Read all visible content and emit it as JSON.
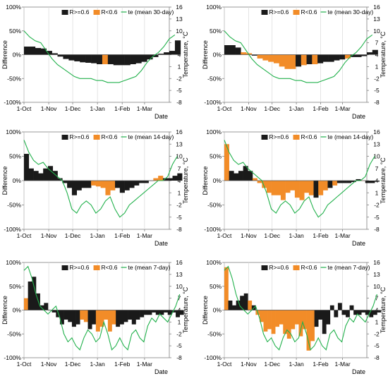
{
  "figure": {
    "legend": {
      "high": "R>=0.6",
      "low": "R<0.6"
    },
    "xlabel": "Date",
    "ylabel_left": "Difference",
    "ylabel_right": "Temperature, °C",
    "colors": {
      "high": "#1a1a1a",
      "low": "#f28c28",
      "temp": "#22b14c",
      "grid": "#d9d9d9",
      "axis": "#7f7f7f"
    }
  },
  "chart_data": [
    {
      "type": "bar",
      "panel": "top-left",
      "legend_temp": "te (mean 30-day)",
      "ylim": [
        -1.0,
        1.0
      ],
      "y_ticks": [
        "100%",
        "50%",
        "0%",
        "-50%",
        "-100%"
      ],
      "y2lim": [
        -8,
        16
      ],
      "y2_ticks": [
        "16",
        "13",
        "10",
        "7",
        "4",
        "1",
        "-2",
        "-5",
        "-8"
      ],
      "x_ticks": [
        "1-Oct",
        "1-Nov",
        "1-Dec",
        "1-Jan",
        "1-Feb",
        "1-Mar"
      ],
      "x_tick_days": [
        0,
        31,
        61,
        92,
        123,
        151
      ],
      "bars": {
        "day_start": 0,
        "day_step": 7,
        "values": [
          0.17,
          0.17,
          0.14,
          0.13,
          0.08,
          0.03,
          -0.04,
          -0.09,
          -0.12,
          -0.14,
          -0.16,
          -0.17,
          -0.18,
          -0.2,
          -0.2,
          -0.2,
          -0.22,
          -0.22,
          -0.22,
          -0.2,
          -0.18,
          -0.15,
          -0.1,
          -0.05,
          0.02,
          0.05,
          0.08,
          0.3
        ],
        "reliable": [
          1,
          1,
          1,
          1,
          1,
          1,
          1,
          1,
          1,
          1,
          1,
          1,
          1,
          1,
          0,
          1,
          1,
          1,
          1,
          1,
          1,
          1,
          1,
          1,
          1,
          1,
          1,
          1
        ]
      },
      "temperature": {
        "day_start": 0,
        "day_step": 7,
        "values": [
          10.0,
          8.5,
          7.5,
          7.0,
          5.0,
          3.0,
          1.5,
          0.5,
          -0.5,
          -1.5,
          -2.0,
          -2.0,
          -2.0,
          -2.5,
          -2.5,
          -3.0,
          -3.0,
          -3.0,
          -2.5,
          -2.0,
          -1.5,
          0.0,
          2.0,
          3.5,
          4.5,
          6.0,
          8.0,
          9.0
        ]
      }
    },
    {
      "type": "bar",
      "panel": "top-right",
      "legend_temp": "te (mean 30-day)",
      "ylim": [
        -1.0,
        1.0
      ],
      "y_ticks": [
        "100%",
        "50%",
        "0%",
        "-50%",
        "-100%"
      ],
      "y2lim": [
        -8,
        16
      ],
      "y2_ticks": [
        "16",
        "13",
        "10",
        "7",
        "4",
        "1",
        "-2",
        "-5",
        "-8"
      ],
      "x_ticks": [
        "1-Oct",
        "1-Nov",
        "1-Dec",
        "1-Jan",
        "1-Feb",
        "1-Mar"
      ],
      "x_tick_days": [
        0,
        31,
        61,
        92,
        123,
        151
      ],
      "bars": {
        "day_start": 0,
        "day_step": 7,
        "values": [
          0.2,
          0.2,
          0.15,
          0.05,
          0.03,
          -0.02,
          -0.08,
          -0.12,
          -0.15,
          -0.18,
          -0.25,
          -0.3,
          -0.3,
          -0.25,
          -0.22,
          -0.2,
          -0.2,
          -0.18,
          -0.15,
          -0.15,
          -0.12,
          -0.1,
          -0.08,
          -0.05,
          -0.05,
          -0.03,
          0.05,
          0.1
        ],
        "reliable": [
          1,
          1,
          1,
          0,
          0,
          1,
          0,
          0,
          0,
          0,
          0,
          0,
          0,
          1,
          0,
          1,
          0,
          1,
          1,
          1,
          1,
          1,
          0,
          1,
          1,
          1,
          1,
          1
        ]
      },
      "temperature": {
        "day_start": 0,
        "day_step": 7,
        "values": [
          10.0,
          8.5,
          7.5,
          7.0,
          5.0,
          3.0,
          1.5,
          0.5,
          -0.5,
          -1.5,
          -2.0,
          -2.0,
          -2.0,
          -2.5,
          -2.5,
          -3.0,
          -3.0,
          -3.0,
          -2.5,
          -2.0,
          -1.5,
          0.0,
          2.0,
          3.5,
          4.5,
          6.0,
          8.0,
          9.0
        ]
      }
    },
    {
      "type": "bar",
      "panel": "middle-left",
      "legend_temp": "te (mean 14-day)",
      "ylim": [
        -1.0,
        1.0
      ],
      "y_ticks": [
        "100%",
        "50%",
        "0%",
        "-50%",
        "-100%"
      ],
      "y2lim": [
        -8,
        16
      ],
      "y2_ticks": [
        "16",
        "13",
        "10",
        "7",
        "4",
        "1",
        "-2",
        "-5",
        "-8"
      ],
      "x_ticks": [
        "1-Oct",
        "1-Nov",
        "1-Dec",
        "1-Jan",
        "1-Feb",
        "1-Mar"
      ],
      "x_tick_days": [
        0,
        31,
        61,
        92,
        123,
        151
      ],
      "bars": {
        "day_start": 0,
        "day_step": 6,
        "values": [
          0.55,
          0.25,
          0.2,
          0.15,
          0.25,
          0.3,
          0.2,
          0.05,
          -0.05,
          -0.15,
          -0.3,
          -0.2,
          -0.15,
          -0.15,
          -0.1,
          -0.12,
          -0.15,
          -0.3,
          -0.2,
          -0.15,
          -0.25,
          -0.2,
          -0.15,
          -0.1,
          -0.05,
          -0.05,
          0.0,
          0.05,
          0.1,
          0.05,
          0.05,
          0.1,
          0.15
        ],
        "reliable": [
          1,
          1,
          1,
          1,
          1,
          1,
          1,
          1,
          1,
          1,
          1,
          1,
          1,
          1,
          0,
          0,
          0,
          0,
          0,
          1,
          1,
          1,
          1,
          1,
          1,
          1,
          1,
          0,
          0,
          1,
          1,
          1,
          1
        ]
      },
      "temperature": {
        "day_start": 0,
        "day_step": 6,
        "values": [
          14.0,
          11.0,
          9.0,
          8.0,
          8.5,
          7.0,
          6.0,
          5.0,
          4.0,
          1.0,
          -3.0,
          -4.0,
          -2.0,
          -1.0,
          -2.0,
          -4.0,
          -3.0,
          -1.0,
          0.0,
          -3.0,
          -5.0,
          -4.0,
          -2.0,
          -1.0,
          0.0,
          1.0,
          2.0,
          3.0,
          4.0,
          4.0,
          5.0,
          8.0,
          10.0
        ]
      }
    },
    {
      "type": "bar",
      "panel": "middle-right",
      "legend_temp": "te (mean 14-day)",
      "ylim": [
        -1.0,
        1.0
      ],
      "y_ticks": [
        "100%",
        "50%",
        "0%",
        "-50%",
        "-100%"
      ],
      "y2lim": [
        -8,
        16
      ],
      "y2_ticks": [
        "16",
        "13",
        "10",
        "7",
        "4",
        "1",
        "-2",
        "-5",
        "-8"
      ],
      "x_ticks": [
        "1-Oct",
        "1-Nov",
        "1-Dec",
        "1-Jan",
        "1-Feb",
        "1-Mar"
      ],
      "x_tick_days": [
        0,
        31,
        61,
        92,
        123,
        151
      ],
      "bars": {
        "day_start": 0,
        "day_step": 6,
        "values": [
          0.75,
          0.2,
          0.15,
          0.2,
          0.3,
          0.2,
          0.05,
          -0.05,
          -0.15,
          -0.25,
          -0.3,
          -0.3,
          -0.4,
          -0.25,
          -0.2,
          -0.35,
          -0.4,
          -0.25,
          -0.3,
          -0.35,
          -0.3,
          -0.2,
          -0.15,
          -0.1,
          -0.05,
          -0.05,
          -0.05,
          -0.03,
          0.03,
          0.0,
          -0.05,
          -0.05,
          -0.02
        ],
        "reliable": [
          0,
          1,
          1,
          1,
          1,
          1,
          0,
          0,
          0,
          0,
          0,
          0,
          0,
          0,
          0,
          0,
          0,
          0,
          0,
          1,
          0,
          0,
          1,
          0,
          1,
          1,
          1,
          1,
          1,
          0,
          1,
          1,
          1
        ]
      },
      "temperature": {
        "day_start": 0,
        "day_step": 6,
        "values": [
          14.0,
          11.0,
          9.0,
          8.0,
          8.5,
          7.0,
          6.0,
          5.0,
          4.0,
          1.0,
          -3.0,
          -4.0,
          -2.0,
          -1.0,
          -2.0,
          -4.0,
          -3.0,
          -1.0,
          0.0,
          -3.0,
          -5.0,
          -4.0,
          -2.0,
          -1.0,
          0.0,
          1.0,
          2.0,
          3.0,
          4.0,
          4.0,
          5.0,
          8.0,
          10.0
        ]
      }
    },
    {
      "type": "bar",
      "panel": "bottom-left",
      "legend_temp": "te (mean 7-day)",
      "ylim": [
        -1.0,
        1.0
      ],
      "y_ticks": [
        "100%",
        "50%",
        "0%",
        "-50%",
        "-100%"
      ],
      "y2lim": [
        -8,
        16
      ],
      "y2_ticks": [
        "16",
        "13",
        "10",
        "7",
        "4",
        "1",
        "-2",
        "-5",
        "-8"
      ],
      "x_ticks": [
        "1-Oct",
        "1-Nov",
        "1-Dec",
        "1-Jan",
        "1-Feb",
        "1-Mar"
      ],
      "x_tick_days": [
        0,
        31,
        61,
        92,
        123,
        151
      ],
      "bars": {
        "day_start": 0,
        "day_step": 5,
        "values": [
          0.25,
          0.6,
          0.7,
          0.35,
          0.1,
          0.15,
          0.0,
          -0.05,
          -0.15,
          -0.3,
          -0.2,
          -0.25,
          -0.35,
          -0.3,
          -0.2,
          -0.25,
          -0.4,
          -0.3,
          -0.45,
          -0.35,
          -0.2,
          -0.45,
          -0.3,
          -0.35,
          -0.3,
          -0.25,
          -0.2,
          -0.3,
          -0.2,
          -0.15,
          -0.1,
          -0.1,
          -0.05,
          -0.1,
          -0.1,
          -0.05,
          -0.1,
          -0.05,
          -0.15,
          -0.1
        ],
        "reliable": [
          0,
          1,
          1,
          1,
          1,
          1,
          1,
          1,
          1,
          1,
          1,
          1,
          1,
          1,
          0,
          0,
          1,
          1,
          0,
          0,
          0,
          0,
          0,
          1,
          1,
          1,
          1,
          1,
          1,
          1,
          1,
          1,
          1,
          1,
          1,
          1,
          1,
          1,
          1,
          1
        ]
      },
      "temperature": {
        "day_start": 0,
        "day_step": 5,
        "values": [
          14.0,
          15.0,
          12.0,
          8.0,
          5.0,
          4.0,
          3.0,
          4.0,
          5.0,
          2.0,
          -2.0,
          -4.0,
          -3.0,
          -5.0,
          -6.0,
          -3.0,
          -1.0,
          -2.0,
          -4.0,
          -3.0,
          1.0,
          -2.0,
          -6.0,
          -5.0,
          -3.0,
          -5.0,
          -6.0,
          -2.0,
          -1.0,
          -3.0,
          -4.0,
          0.0,
          2.0,
          1.0,
          3.0,
          2.0,
          1.0,
          3.0,
          5.0,
          8.0
        ]
      }
    },
    {
      "type": "bar",
      "panel": "bottom-right",
      "legend_temp": "te (mean 7-day)",
      "ylim": [
        -1.0,
        1.0
      ],
      "y_ticks": [
        "100%",
        "50%",
        "0%",
        "-50%",
        "-100%"
      ],
      "y2lim": [
        -8,
        16
      ],
      "y2_ticks": [
        "16",
        "13",
        "10",
        "7",
        "4",
        "1",
        "-2",
        "-5",
        "-8"
      ],
      "x_ticks": [
        "1-Oct",
        "1-Nov",
        "1-Dec",
        "1-Jan",
        "1-Feb",
        "1-Mar"
      ],
      "x_tick_days": [
        0,
        31,
        61,
        92,
        123,
        151
      ],
      "bars": {
        "day_start": 0,
        "day_step": 5,
        "values": [
          0.9,
          0.2,
          0.1,
          0.2,
          0.3,
          0.35,
          0.2,
          0.1,
          -0.1,
          -0.25,
          -0.45,
          -0.4,
          -0.5,
          -0.35,
          -0.3,
          -0.5,
          -0.6,
          -0.4,
          -0.3,
          -0.55,
          -0.4,
          -0.85,
          -0.65,
          -0.35,
          -0.2,
          -0.5,
          -0.3,
          0.1,
          -0.15,
          0.15,
          -0.1,
          -0.15,
          0.1,
          -0.1,
          -0.1,
          -0.05,
          -0.1,
          -0.15,
          -0.1,
          -0.05
        ],
        "reliable": [
          0,
          1,
          1,
          1,
          1,
          1,
          0,
          1,
          0,
          0,
          0,
          0,
          0,
          0,
          0,
          0,
          0,
          0,
          0,
          0,
          0,
          0,
          0,
          1,
          1,
          1,
          1,
          1,
          1,
          1,
          1,
          1,
          1,
          1,
          1,
          1,
          1,
          1,
          1,
          1
        ]
      },
      "temperature": {
        "day_start": 0,
        "day_step": 5,
        "values": [
          14.0,
          15.0,
          12.0,
          8.0,
          5.0,
          4.0,
          3.0,
          4.0,
          5.0,
          2.0,
          -2.0,
          -4.0,
          -3.0,
          -5.0,
          -6.0,
          -3.0,
          -1.0,
          -2.0,
          -4.0,
          -3.0,
          1.0,
          -2.0,
          -6.0,
          -5.0,
          -3.0,
          -5.0,
          -6.0,
          -2.0,
          -1.0,
          -3.0,
          -4.0,
          0.0,
          2.0,
          1.0,
          3.0,
          2.0,
          1.0,
          3.0,
          5.0,
          8.0
        ]
      }
    }
  ]
}
